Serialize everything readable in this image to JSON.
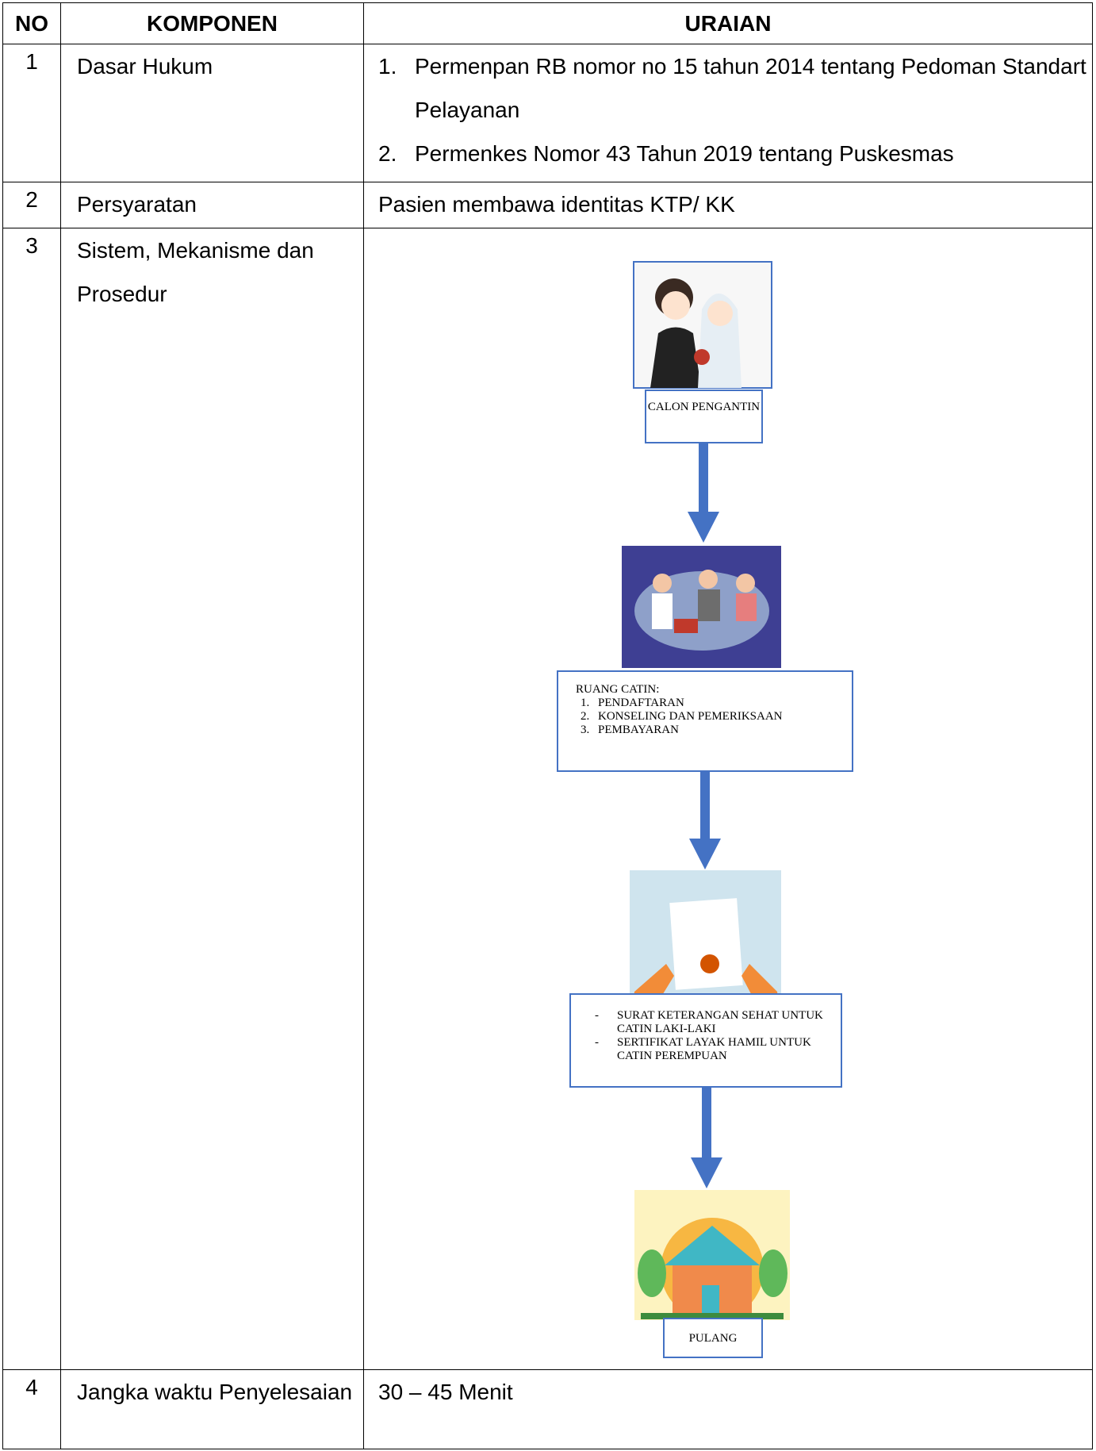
{
  "table": {
    "header": {
      "no": "NO",
      "komponen": "KOMPONEN",
      "uraian": "URAIAN"
    },
    "rows": [
      {
        "no": "1",
        "komponen": "Dasar Hukum",
        "uraian": {
          "markers": [
            "1.",
            "2."
          ],
          "items": [
            "Permenpan RB nomor no 15 tahun 2014 tentang Pedoman Standart Pelayanan",
            "Permenkes Nomor 43 Tahun 2019 tentang Puskesmas"
          ]
        }
      },
      {
        "no": "2",
        "komponen": "Persyaratan",
        "uraian": "Pasien membawa identitas KTP/ KK"
      },
      {
        "no": "3",
        "komponen": "Sistem, Mekanisme dan Prosedur",
        "flow": [
          {
            "title": "CALON PENGANTIN"
          },
          {
            "title": "RUANG CATIN:",
            "markers": [
              "1.",
              "2.",
              "3."
            ],
            "items": [
              "PENDAFTARAN",
              "KONSELING DAN PEMERIKSAAN",
              "PEMBAYARAN"
            ]
          },
          {
            "markers": [
              "-",
              "-"
            ],
            "items": [
              "SURAT KETERANGAN SEHAT UNTUK CATIN LAKI-LAKI",
              "SERTIFIKAT LAYAK HAMIL UNTUK CATIN PEREMPUAN"
            ]
          },
          {
            "title": "PULANG"
          }
        ]
      },
      {
        "no": "4",
        "komponen": "Jangka waktu Penyelesaian",
        "uraian": "30 – 45  Menit"
      }
    ]
  }
}
